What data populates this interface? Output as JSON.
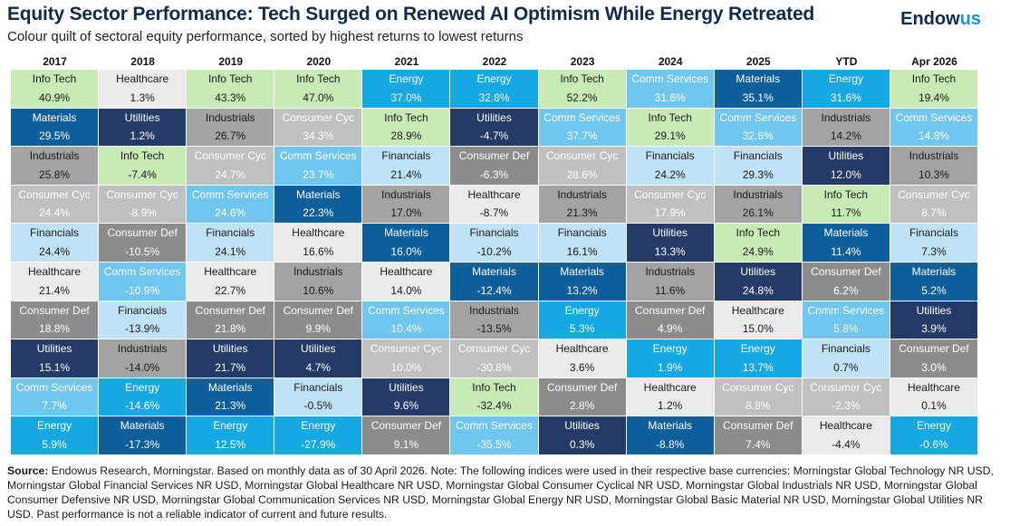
{
  "header": {
    "title": "Equity Sector Performance: Tech Surged on Renewed AI Optimism While Energy Retreated",
    "subtitle": "Colour quilt of sectoral equity performance, sorted by highest returns to lowest returns",
    "logo_main": "Endow",
    "logo_accent": "us"
  },
  "colors": {
    "Info Tech": "#c8eab4",
    "Healthcare": "#ebebeb",
    "Materials": "#0d5f9c",
    "Industrials": "#a3a3a3",
    "Consumer Cyc": "#c0c0c0",
    "Financials": "#bfe2f7",
    "Consumer Def": "#8c8c8c",
    "Utilities": "#233b66",
    "Comm Services": "#6fc6ef",
    "Energy": "#16a8e3"
  },
  "text_colors": {
    "Info Tech": "#1a1a1a",
    "Healthcare": "#1a1a1a",
    "Materials": "#ffffff",
    "Industrials": "#1a1a1a",
    "Consumer Cyc": "#ffffff",
    "Financials": "#1a1a1a",
    "Consumer Def": "#ffffff",
    "Utilities": "#ffffff",
    "Comm Services": "#ffffff",
    "Energy": "#ffffff"
  },
  "chart_data": {
    "type": "table",
    "columns": [
      "2017",
      "2018",
      "2019",
      "2020",
      "2021",
      "2022",
      "2023",
      "2024",
      "2025",
      "YTD",
      "Apr 2026"
    ],
    "cells": [
      [
        [
          "Info Tech",
          "40.9%"
        ],
        [
          "Materials",
          "29.5%"
        ],
        [
          "Industrials",
          "25.8%"
        ],
        [
          "Consumer Cyc",
          "24.4%"
        ],
        [
          "Financials",
          "24.4%"
        ],
        [
          "Healthcare",
          "21.4%"
        ],
        [
          "Consumer Def",
          "18.8%"
        ],
        [
          "Utilities",
          "15.1%"
        ],
        [
          "Comm Services",
          "7.7%"
        ],
        [
          "Energy",
          "5.9%"
        ]
      ],
      [
        [
          "Healthcare",
          "1.3%"
        ],
        [
          "Utilities",
          "1.2%"
        ],
        [
          "Info Tech",
          "-7.4%"
        ],
        [
          "Consumer Cyc",
          "-8.9%"
        ],
        [
          "Consumer Def",
          "-10.5%"
        ],
        [
          "Comm Services",
          "-10.9%"
        ],
        [
          "Financials",
          "-13.9%"
        ],
        [
          "Industrials",
          "-14.0%"
        ],
        [
          "Energy",
          "-14.6%"
        ],
        [
          "Materials",
          "-17.3%"
        ]
      ],
      [
        [
          "Info Tech",
          "43.3%"
        ],
        [
          "Industrials",
          "26.7%"
        ],
        [
          "Consumer Cyc",
          "24.7%"
        ],
        [
          "Comm Services",
          "24.6%"
        ],
        [
          "Financials",
          "24.1%"
        ],
        [
          "Healthcare",
          "22.7%"
        ],
        [
          "Consumer Def",
          "21.8%"
        ],
        [
          "Utilities",
          "21.7%"
        ],
        [
          "Materials",
          "21.3%"
        ],
        [
          "Energy",
          "12.5%"
        ]
      ],
      [
        [
          "Info Tech",
          "47.0%"
        ],
        [
          "Consumer Cyc",
          "34.3%"
        ],
        [
          "Comm Services",
          "23.7%"
        ],
        [
          "Materials",
          "22.3%"
        ],
        [
          "Healthcare",
          "16.6%"
        ],
        [
          "Industrials",
          "10.6%"
        ],
        [
          "Consumer Def",
          "9.9%"
        ],
        [
          "Utilities",
          "4.7%"
        ],
        [
          "Financials",
          "-0.5%"
        ],
        [
          "Energy",
          "-27.9%"
        ]
      ],
      [
        [
          "Energy",
          "37.0%"
        ],
        [
          "Info Tech",
          "28.9%"
        ],
        [
          "Financials",
          "21.4%"
        ],
        [
          "Industrials",
          "17.0%"
        ],
        [
          "Materials",
          "16.0%"
        ],
        [
          "Healthcare",
          "14.0%"
        ],
        [
          "Comm Services",
          "10.4%"
        ],
        [
          "Consumer Cyc",
          "10.0%"
        ],
        [
          "Utilities",
          "9.6%"
        ],
        [
          "Consumer Def",
          "9.1%"
        ]
      ],
      [
        [
          "Energy",
          "32.8%"
        ],
        [
          "Utilities",
          "-4.7%"
        ],
        [
          "Consumer Def",
          "-6.3%"
        ],
        [
          "Healthcare",
          "-8.7%"
        ],
        [
          "Financials",
          "-10.2%"
        ],
        [
          "Materials",
          "-12.4%"
        ],
        [
          "Industrials",
          "-13.5%"
        ],
        [
          "Consumer Cyc",
          "-30.8%"
        ],
        [
          "Info Tech",
          "-32.4%"
        ],
        [
          "Comm Services",
          "-35.5%"
        ]
      ],
      [
        [
          "Info Tech",
          "52.2%"
        ],
        [
          "Comm Services",
          "37.7%"
        ],
        [
          "Consumer Cyc",
          "28.6%"
        ],
        [
          "Industrials",
          "21.3%"
        ],
        [
          "Financials",
          "16.1%"
        ],
        [
          "Materials",
          "13.2%"
        ],
        [
          "Energy",
          "5.3%"
        ],
        [
          "Healthcare",
          "3.6%"
        ],
        [
          "Consumer Def",
          "2.8%"
        ],
        [
          "Utilities",
          "0.3%"
        ]
      ],
      [
        [
          "Comm Services",
          "31.6%"
        ],
        [
          "Info Tech",
          "29.1%"
        ],
        [
          "Financials",
          "24.2%"
        ],
        [
          "Consumer Cyc",
          "17.9%"
        ],
        [
          "Utilities",
          "13.3%"
        ],
        [
          "Industrials",
          "11.6%"
        ],
        [
          "Consumer Def",
          "4.9%"
        ],
        [
          "Energy",
          "1.9%"
        ],
        [
          "Healthcare",
          "1.2%"
        ],
        [
          "Materials",
          "-8.8%"
        ]
      ],
      [
        [
          "Materials",
          "35.1%"
        ],
        [
          "Comm Services",
          "32.6%"
        ],
        [
          "Financials",
          "29.3%"
        ],
        [
          "Industrials",
          "26.1%"
        ],
        [
          "Info Tech",
          "24.9%"
        ],
        [
          "Utilities",
          "24.8%"
        ],
        [
          "Healthcare",
          "15.0%"
        ],
        [
          "Energy",
          "13.7%"
        ],
        [
          "Consumer Cyc",
          "8.8%"
        ],
        [
          "Consumer Def",
          "7.4%"
        ]
      ],
      [
        [
          "Energy",
          "31.6%"
        ],
        [
          "Industrials",
          "14.2%"
        ],
        [
          "Utilities",
          "12.0%"
        ],
        [
          "Info Tech",
          "11.7%"
        ],
        [
          "Materials",
          "11.4%"
        ],
        [
          "Consumer Def",
          "6.2%"
        ],
        [
          "Comm Services",
          "5.8%"
        ],
        [
          "Financials",
          "0.7%"
        ],
        [
          "Consumer Cyc",
          "-2.3%"
        ],
        [
          "Healthcare",
          "-4.4%"
        ]
      ],
      [
        [
          "Info Tech",
          "19.4%"
        ],
        [
          "Comm Services",
          "14.8%"
        ],
        [
          "Industrials",
          "10.3%"
        ],
        [
          "Consumer Cyc",
          "8.7%"
        ],
        [
          "Financials",
          "7.3%"
        ],
        [
          "Materials",
          "5.2%"
        ],
        [
          "Utilities",
          "3.9%"
        ],
        [
          "Consumer Def",
          "3.0%"
        ],
        [
          "Healthcare",
          "0.1%"
        ],
        [
          "Energy",
          "-0.6%"
        ]
      ]
    ]
  },
  "footer": {
    "source_label": "Source:",
    "source_text": " Endowus Research, Morningstar. Based on monthly data as of 30 April 2026. Note: The following indices were used in their respective base currencies: Morningstar Global Technology NR USD, Morningstar Global Financial Services NR USD, Morningstar Global Healthcare NR USD, Morningstar Global Consumer Cyclical NR USD, Morningstar Global Industrials NR USD, Morningstar Global Consumer Defensive NR USD, Morningstar Global Communication Services NR USD, Morningstar Global Energy NR USD, Morningstar Global Basic Material NR USD, Morningstar Global Utilities NR USD. Past performance is not a reliable indicator of current and future results."
  }
}
